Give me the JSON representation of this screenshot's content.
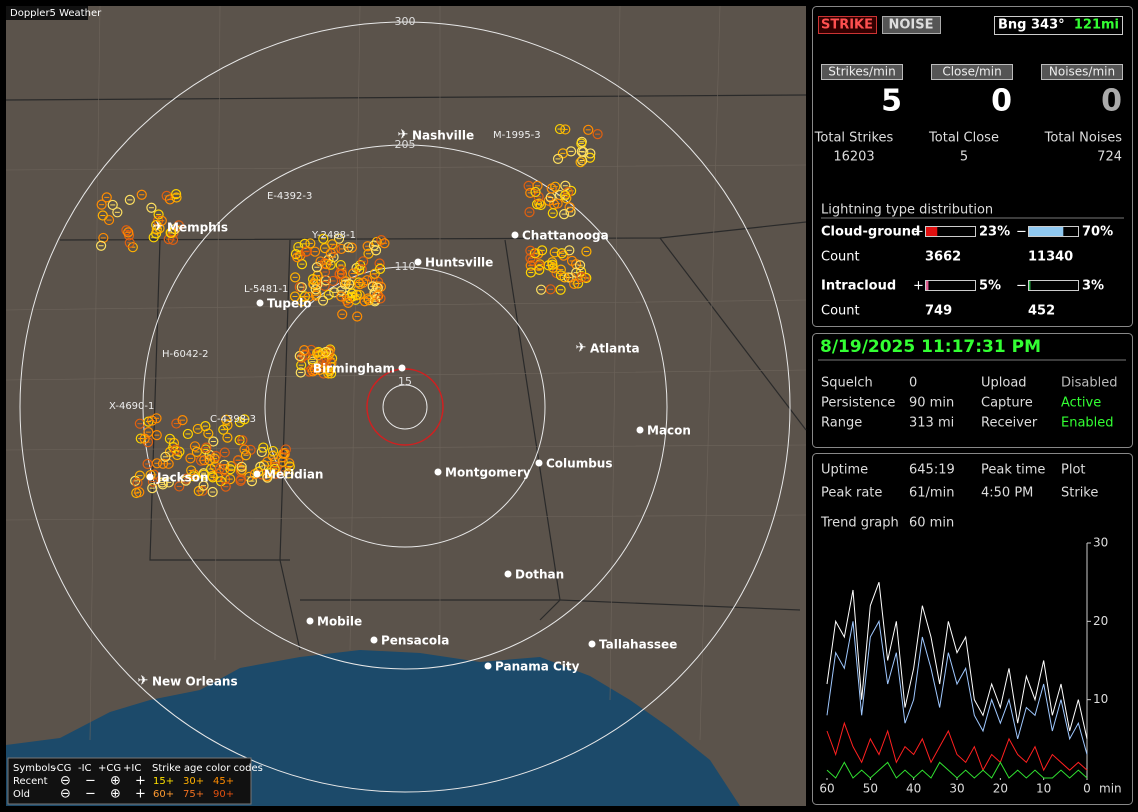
{
  "title_tab": "Doppler5 Weather",
  "map": {
    "ring_labels": [
      "300",
      "205",
      "110",
      "15"
    ],
    "cities": [
      "Nashville",
      "Memphis",
      "Chattanooga",
      "Huntsville",
      "Tupelo",
      "Atlanta",
      "Birmingham",
      "Macon",
      "Jackson",
      "Meridian",
      "Montgomery",
      "Columbus",
      "Dothan",
      "Mobile",
      "Pensacola",
      "Panama City",
      "Tallahassee",
      "New Orleans"
    ],
    "storm_labels": [
      "M-1995-3",
      "E-4392-3",
      "Y-2488-1",
      "L-5481-1",
      "H-6042-2",
      "X-4690-1",
      "C-4398-3"
    ],
    "legend": {
      "symbols": "Symbols",
      "neg_cg": "-CG",
      "neg_ic": "-IC",
      "pos_cg": "+CG",
      "pos_ic": "+IC",
      "age_title": "Strike age color codes",
      "recent": "Recent",
      "old": "Old",
      "ages": [
        "15+",
        "30+",
        "45+",
        "60+",
        "75+",
        "90+"
      ]
    }
  },
  "panel": {
    "strike_button": "STRIKE",
    "noise_button": "NOISE",
    "bearing": "Bng 343°",
    "distance": "121mi",
    "rate_headers": [
      "Strikes/min",
      "Close/min",
      "Noises/min"
    ],
    "rates": [
      5,
      0,
      0
    ],
    "total_headers": [
      "Total Strikes",
      "Total Close",
      "Total Noises"
    ],
    "totals": [
      16203,
      5,
      724
    ],
    "distribution_title": "Lightning type distribution",
    "cloud_ground": {
      "label": "Cloud-ground",
      "pos_sign": "+",
      "neg_sign": "−",
      "pos_pct": {
        "value": 23,
        "label": "23%"
      },
      "neg_pct": {
        "value": 70,
        "label": "70%"
      },
      "count_label": "Count",
      "pos_count": 3662,
      "neg_count": 11340
    },
    "intracloud": {
      "label": "Intracloud",
      "pos_sign": "+",
      "neg_sign": "−",
      "pos_pct": {
        "value": 5,
        "label": "5%"
      },
      "neg_pct": {
        "value": 3,
        "label": "3%"
      },
      "count_label": "Count",
      "pos_count": 749,
      "neg_count": 452
    },
    "datetime": "8/19/2025 11:17:31 PM",
    "settings": [
      [
        "Squelch",
        "0",
        "Upload",
        "Disabled"
      ],
      [
        "Persistence",
        "90 min",
        "Capture",
        "Active"
      ],
      [
        "Range",
        "313 mi",
        "Receiver",
        "Enabled"
      ]
    ],
    "stats": [
      [
        "Uptime",
        "645:19",
        "Peak time",
        "Plot"
      ],
      [
        "Peak rate",
        "61/min",
        "4:50 PM",
        "Strike"
      ]
    ],
    "trend_label": "Trend graph",
    "trend_window": "60 min"
  },
  "trend_graph": {
    "type": "line",
    "x_label": "min",
    "xlim": [
      60,
      0
    ],
    "xticks": [
      60,
      50,
      40,
      30,
      20,
      10,
      0
    ],
    "ylim": [
      0,
      30
    ],
    "yticks": [
      10,
      20,
      30
    ],
    "x": [
      60,
      58,
      56,
      54,
      52,
      50,
      48,
      46,
      44,
      42,
      40,
      38,
      36,
      34,
      32,
      30,
      28,
      26,
      24,
      22,
      20,
      18,
      16,
      14,
      12,
      10,
      8,
      6,
      4,
      2,
      0
    ],
    "series": [
      {
        "color": "#ffffff",
        "values": [
          12,
          20,
          18,
          24,
          10,
          22,
          25,
          15,
          20,
          9,
          14,
          22,
          18,
          12,
          20,
          16,
          18,
          10,
          8,
          12,
          9,
          14,
          7,
          13,
          10,
          15,
          8,
          12,
          6,
          10,
          5
        ]
      },
      {
        "color": "#9fc8ff",
        "values": [
          8,
          16,
          14,
          20,
          8,
          18,
          20,
          12,
          16,
          7,
          10,
          18,
          14,
          9,
          16,
          12,
          14,
          8,
          6,
          10,
          7,
          10,
          5,
          9,
          8,
          12,
          6,
          10,
          5,
          7,
          3
        ]
      },
      {
        "color": "#ff2020",
        "values": [
          6,
          3,
          7,
          4,
          2,
          5,
          3,
          6,
          2,
          4,
          3,
          5,
          2,
          4,
          6,
          3,
          2,
          4,
          1,
          3,
          2,
          5,
          3,
          2,
          4,
          1,
          3,
          2,
          1,
          2,
          1
        ]
      },
      {
        "color": "#30e030",
        "values": [
          1,
          0,
          2,
          0,
          1,
          0,
          1,
          2,
          0,
          1,
          0,
          1,
          0,
          2,
          1,
          0,
          1,
          0,
          1,
          0,
          2,
          0,
          1,
          0,
          1,
          0,
          0,
          1,
          0,
          1,
          0
        ]
      }
    ]
  }
}
